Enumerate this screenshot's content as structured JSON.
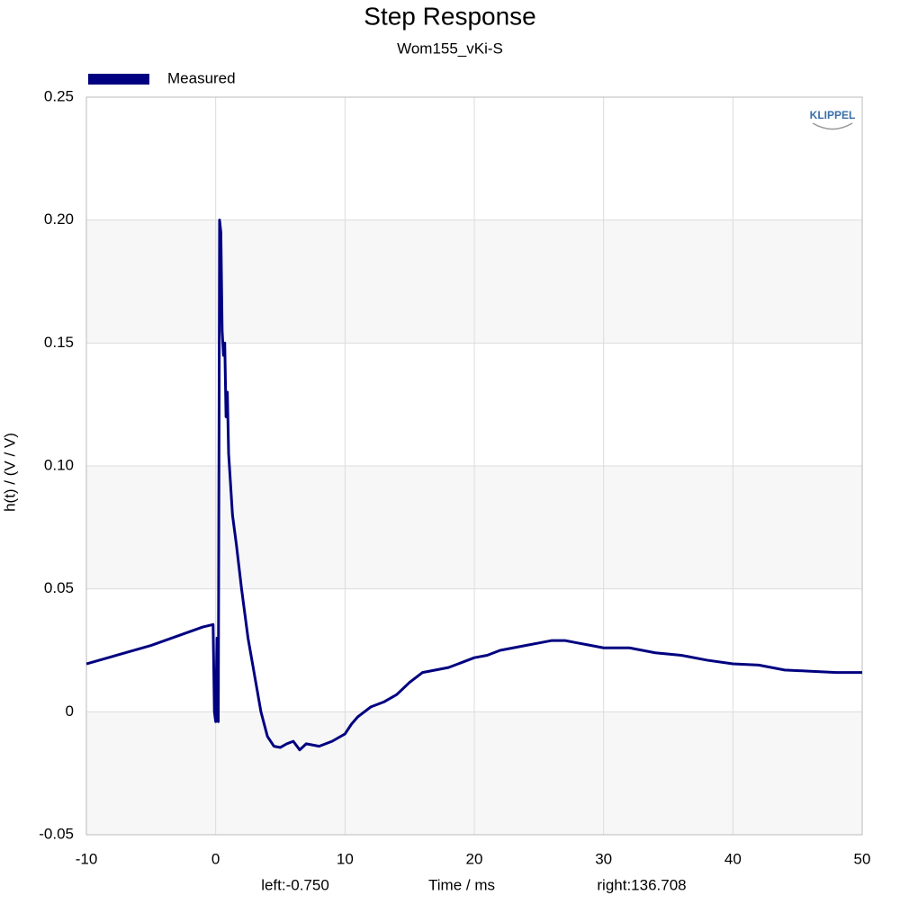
{
  "chart_data": {
    "type": "line",
    "title": "Step Response",
    "subtitle": "Wom155_vKi-S",
    "x_label": "Time / ms",
    "y_label": "h(t) / (V / V)",
    "annotations": [
      "left:-0.750",
      "right:136.708"
    ],
    "logo": "KLIPPEL",
    "legend": "top-left",
    "grid": true,
    "xlim": [
      -10,
      50
    ],
    "xticks": [
      -10,
      0,
      10,
      20,
      30,
      40,
      50
    ],
    "ylim": [
      -0.05,
      0.25
    ],
    "yticks": [
      -0.05,
      0,
      0.05,
      {
        "value": 0.1,
        "label": "0.10"
      },
      0.15,
      {
        "value": 0.2,
        "label": "0.20"
      },
      0.25
    ],
    "x": [
      -10,
      -5,
      -1,
      -0.2,
      -0.1,
      0,
      0.1,
      0.2,
      0.3,
      0.4,
      0.5,
      0.6,
      0.7,
      0.8,
      0.9,
      1.0,
      1.3,
      1.6,
      2.0,
      2.5,
      3.0,
      3.5,
      4.0,
      4.5,
      5,
      5.5,
      6,
      6.5,
      7,
      8,
      9,
      10,
      10.5,
      11,
      12,
      13,
      14,
      15,
      16,
      17,
      18,
      19,
      20,
      21,
      22,
      23,
      24,
      25,
      26,
      27,
      28,
      29,
      30,
      32,
      34,
      36,
      38,
      40,
      42,
      44,
      46,
      48,
      50
    ],
    "series": [
      {
        "name": "Measured",
        "color": "#000080",
        "values": [
          0.0195,
          0.027,
          0.0345,
          0.0355,
          0.0,
          -0.004,
          0.03,
          -0.004,
          0.2,
          0.195,
          0.155,
          0.145,
          0.15,
          0.12,
          0.13,
          0.105,
          0.08,
          0.068,
          0.05,
          0.03,
          0.015,
          0.0,
          -0.01,
          -0.014,
          -0.0145,
          -0.013,
          -0.012,
          -0.0155,
          -0.013,
          -0.014,
          -0.012,
          -0.009,
          -0.005,
          -0.002,
          0.002,
          0.004,
          0.007,
          0.012,
          0.016,
          0.017,
          0.018,
          0.02,
          0.022,
          0.023,
          0.025,
          0.026,
          0.027,
          0.028,
          0.029,
          0.029,
          0.028,
          0.027,
          0.026,
          0.026,
          0.024,
          0.023,
          0.021,
          0.0195,
          0.019,
          0.017,
          0.0165,
          0.016,
          0.016
        ]
      }
    ]
  }
}
